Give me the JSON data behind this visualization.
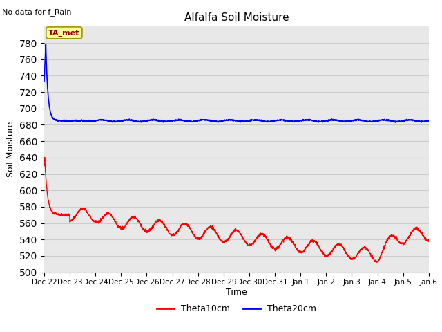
{
  "title": "Alfalfa Soil Moisture",
  "subtitle": "No data for f_Rain",
  "ylabel": "Soil Moisture",
  "xlabel": "Time",
  "ylim": [
    500,
    800
  ],
  "bg_color": "#e8e8e8",
  "fig_color": "#ffffff",
  "legend_label1": "Theta10cm",
  "legend_label2": "Theta20cm",
  "line1_color": "red",
  "line2_color": "blue",
  "annotation_text": "TA_met",
  "annotation_box_color": "#ffff99",
  "annotation_box_edge": "#999900",
  "tick_labels": [
    "Dec 22",
    "Dec 23",
    "Dec 24",
    "Dec 25",
    "Dec 26",
    "Dec 27",
    "Dec 28",
    "Dec 29",
    "Dec 30",
    "Dec 31",
    "Jan 1",
    "Jan 2",
    "Jan 3",
    "Jan 4",
    "Jan 5",
    "Jan 6"
  ],
  "yticks": [
    500,
    520,
    540,
    560,
    580,
    600,
    620,
    640,
    660,
    680,
    700,
    720,
    740,
    760,
    780
  ]
}
